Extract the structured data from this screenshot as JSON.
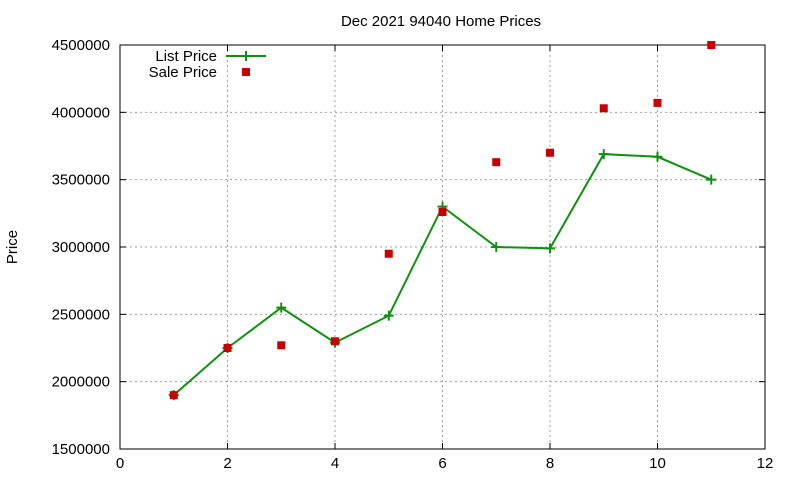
{
  "chart_data": {
    "type": "line",
    "title": "Dec 2021 94040 Home Prices",
    "xlabel": "",
    "ylabel": "Price",
    "xlim": [
      0,
      12
    ],
    "ylim": [
      1500000,
      4500000
    ],
    "xticks": [
      0,
      2,
      4,
      6,
      8,
      10,
      12
    ],
    "yticks": [
      1500000,
      2000000,
      2500000,
      3000000,
      3500000,
      4000000,
      4500000
    ],
    "grid": true,
    "legend_position": "top-left",
    "series": [
      {
        "name": "List Price",
        "style": "line+cross",
        "color": "#109010",
        "x": [
          1,
          2,
          3,
          4,
          5,
          6,
          7,
          8,
          9,
          10,
          11
        ],
        "y": [
          1900000,
          2250000,
          2550000,
          2290000,
          2490000,
          3300000,
          3000000,
          2990000,
          3690000,
          3670000,
          3500000
        ]
      },
      {
        "name": "Sale Price",
        "style": "square",
        "color": "#c80000",
        "x": [
          1,
          2,
          3,
          4,
          5,
          6,
          7,
          8,
          9,
          10,
          11
        ],
        "y": [
          1900000,
          2250000,
          2270000,
          2300000,
          2950000,
          3260000,
          3630000,
          3700000,
          4030000,
          4070000,
          4500000
        ]
      }
    ]
  }
}
